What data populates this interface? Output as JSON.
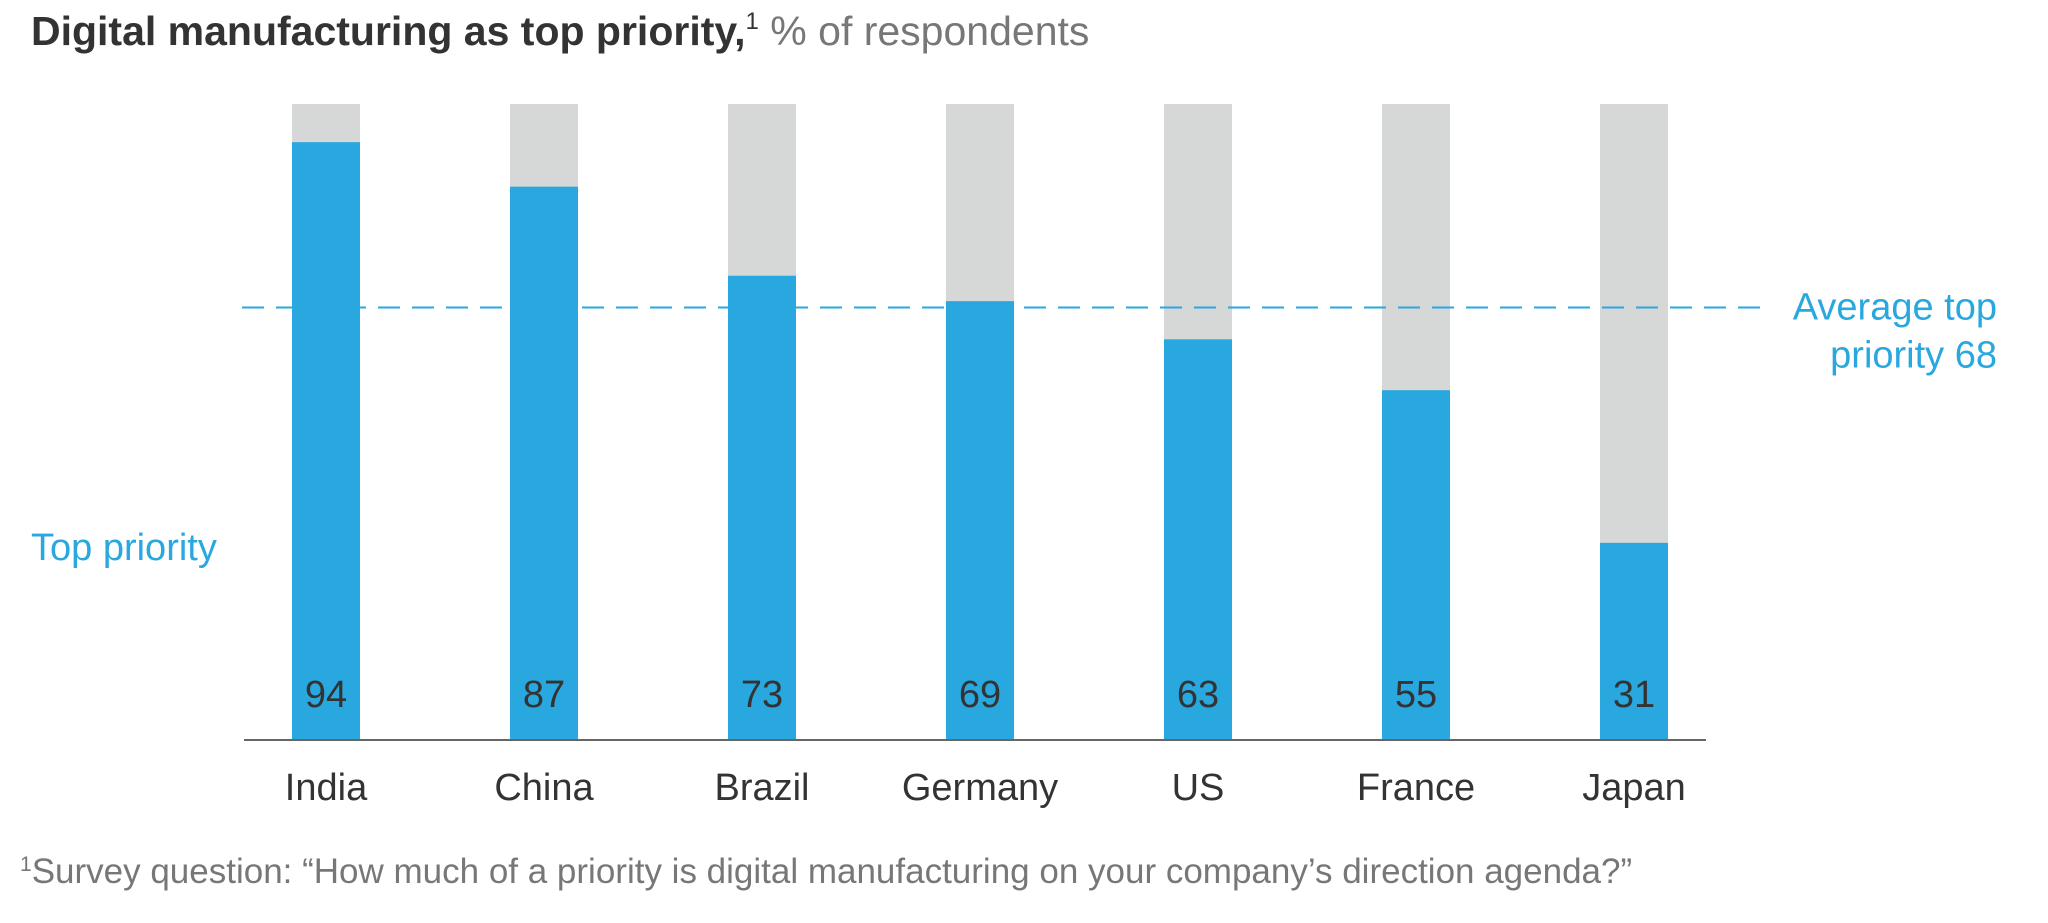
{
  "title": {
    "main": "Digital manufacturing as top priority,",
    "marker": "1",
    "subtitle": "% of respondents"
  },
  "footnote": {
    "marker": "1",
    "text": "Survey question: “How much of a priority is digital manufacturing on your company’s direction agenda?”"
  },
  "colors": {
    "top_priority": "#29A8E0",
    "remainder": "#D6D7D7",
    "average_line": "#29A8E0",
    "text_dark": "#333333",
    "text_muted": "#777777"
  },
  "chart_data": {
    "type": "bar",
    "stacked": true,
    "categories": [
      "India",
      "China",
      "Brazil",
      "Germany",
      "US",
      "France",
      "Japan"
    ],
    "series": [
      {
        "name": "Top priority",
        "values": [
          94,
          87,
          73,
          69,
          63,
          55,
          31
        ]
      }
    ],
    "ylim": [
      0,
      100
    ],
    "grid": false,
    "reference_line": {
      "value": 68,
      "label_line1": "Average top",
      "label_line2": "priority 68"
    }
  }
}
